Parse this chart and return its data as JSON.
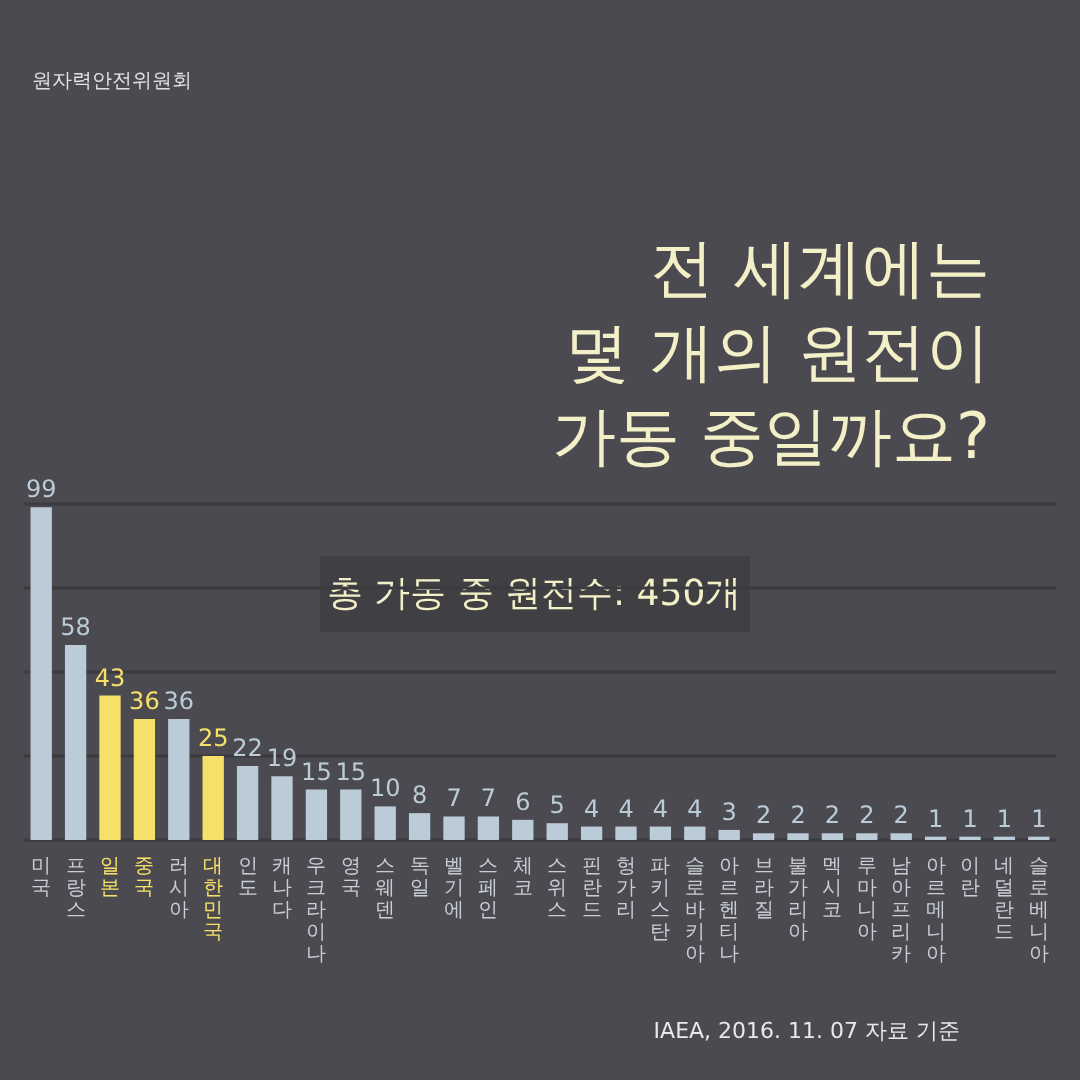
{
  "chart_data": {
    "type": "bar",
    "title": "전 세계에는\n몇 개의 원전이\n가동 중일까요?",
    "categories": [
      "미국",
      "프랑스",
      "일본",
      "중국",
      "러시아",
      "대한민국",
      "인도",
      "캐나다",
      "우크라이나",
      "영국",
      "스웨덴",
      "독일",
      "벨기에",
      "스페인",
      "체코",
      "스위스",
      "핀란드",
      "헝가리",
      "파키스탄",
      "슬로바키아",
      "아르헨티나",
      "브라질",
      "불가리아",
      "멕시코",
      "루마니아",
      "남아프리카",
      "아르메니아",
      "이란",
      "네덜란드",
      "슬로베니아"
    ],
    "values": [
      99,
      58,
      43,
      36,
      36,
      25,
      22,
      19,
      15,
      15,
      10,
      8,
      7,
      7,
      6,
      5,
      4,
      4,
      4,
      4,
      3,
      2,
      2,
      2,
      2,
      2,
      1,
      1,
      1,
      1
    ],
    "colors": [
      "#bccbd8",
      "#bccbd8",
      "#f7e06a",
      "#f7e06a",
      "#bccbd8",
      "#f7e06a",
      "#bccbd8",
      "#bccbd8",
      "#bccbd8",
      "#bccbd8",
      "#bccbd8",
      "#bccbd8",
      "#bccbd8",
      "#bccbd8",
      "#bccbd8",
      "#bccbd8",
      "#bccbd8",
      "#bccbd8",
      "#bccbd8",
      "#bccbd8",
      "#bccbd8",
      "#bccbd8",
      "#bccbd8",
      "#bccbd8",
      "#bccbd8",
      "#bccbd8",
      "#bccbd8",
      "#bccbd8",
      "#bccbd8",
      "#bccbd8"
    ],
    "ylim": [
      0,
      100
    ],
    "yticks": [
      {
        "value": 0,
        "label": null
      },
      {
        "value": 25,
        "label": null
      },
      {
        "value": 50,
        "label": null
      },
      {
        "value": 75,
        "label": null
      },
      {
        "value": 100,
        "label": null
      }
    ],
    "tick_labels": "x",
    "grid": "y",
    "data_labels": true,
    "annotations": [
      "원자력안전위원회",
      "총 가동 중 원전수: 450개",
      "IAEA, 2016. 11. 07 자료 기준"
    ]
  }
}
